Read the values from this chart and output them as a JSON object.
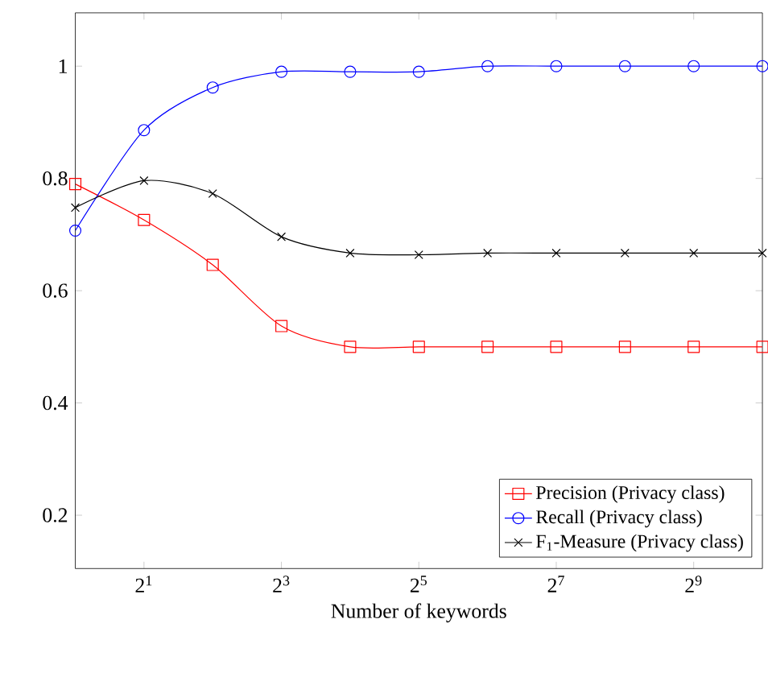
{
  "chart_data": {
    "type": "line",
    "xlabel": "Number of keywords",
    "x": [
      1,
      2,
      4,
      8,
      16,
      32,
      64,
      128,
      256,
      512,
      1024
    ],
    "series": [
      {
        "name": "Precision (Privacy class)",
        "color": "#ff0000",
        "marker": "square",
        "values": [
          0.79,
          0.726,
          0.646,
          0.537,
          0.5,
          0.5,
          0.5,
          0.5,
          0.5,
          0.5,
          0.5
        ]
      },
      {
        "name": "Recall (Privacy class)",
        "color": "#0000ff",
        "marker": "circle",
        "values": [
          0.707,
          0.886,
          0.962,
          0.99,
          0.99,
          0.99,
          1.0,
          1.0,
          1.0,
          1.0,
          1.0
        ]
      },
      {
        "name": "F$_{1}$-Measure (Privacy class)",
        "color": "#000000",
        "marker": "cross",
        "values": [
          0.748,
          0.796,
          0.773,
          0.696,
          0.667,
          0.664,
          0.667,
          0.667,
          0.667,
          0.667,
          0.667
        ]
      }
    ],
    "log": "x",
    "xlim": [
      1,
      1024
    ],
    "ylim": [
      0.105,
      1.095
    ],
    "xticks": [
      {
        "value": 2,
        "label": "2$^{1}$"
      },
      {
        "value": 8,
        "label": "2$^{3}$"
      },
      {
        "value": 32,
        "label": "2$^{5}$"
      },
      {
        "value": 128,
        "label": "2$^{7}$"
      },
      {
        "value": 512,
        "label": "2$^{9}$"
      }
    ],
    "yticks": [
      0.2,
      0.4,
      0.6,
      0.8,
      1
    ],
    "grid": false,
    "legend": "bottom right",
    "line_style": "solid"
  }
}
